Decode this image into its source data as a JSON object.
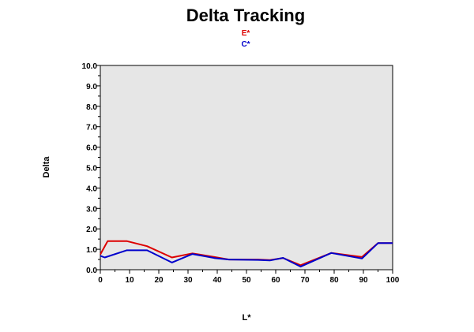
{
  "chart_data": {
    "type": "line",
    "title": "Delta Tracking",
    "xlabel": "L*",
    "ylabel": "Delta",
    "xlim": [
      0,
      100
    ],
    "ylim": [
      0,
      10
    ],
    "x_ticks": [
      "0",
      "10",
      "20",
      "30",
      "40",
      "50",
      "60",
      "70",
      "80",
      "90",
      "100"
    ],
    "y_ticks": [
      "0.0",
      "1.0",
      "2.0",
      "3.0",
      "4.0",
      "5.0",
      "6.0",
      "7.0",
      "8.0",
      "9.0",
      "10.0"
    ],
    "grid": false,
    "legend_position": "top-center",
    "plot_background": "#e6e6e6",
    "series": [
      {
        "name": "E*",
        "color": "#dd0000",
        "x": [
          0,
          2.5,
          9,
          16,
          24.5,
          31.5,
          39,
          44,
          54,
          58,
          62.5,
          68.5,
          79,
          89.5,
          95,
          100
        ],
        "y": [
          0.75,
          1.4,
          1.4,
          1.15,
          0.6,
          0.8,
          0.62,
          0.5,
          0.5,
          0.47,
          0.57,
          0.22,
          0.82,
          0.62,
          1.3,
          1.3
        ]
      },
      {
        "name": "C*",
        "color": "#0000cc",
        "x": [
          0,
          1.5,
          9,
          16,
          24.5,
          31.5,
          39,
          44,
          54,
          58,
          62.5,
          68.5,
          79,
          89.5,
          95,
          100
        ],
        "y": [
          0.68,
          0.6,
          0.95,
          0.95,
          0.35,
          0.77,
          0.57,
          0.5,
          0.48,
          0.45,
          0.58,
          0.15,
          0.82,
          0.55,
          1.3,
          1.3
        ]
      }
    ]
  }
}
